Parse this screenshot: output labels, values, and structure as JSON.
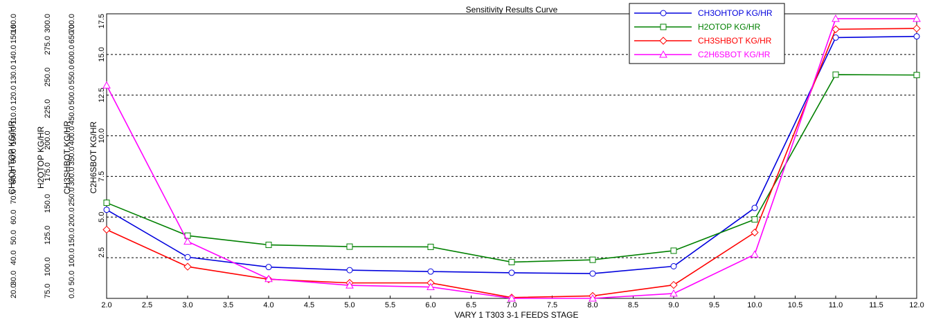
{
  "chart_data": {
    "type": "line",
    "title": "Sensitivity Results Curve",
    "xlabel": "VARY   1 T303 3-1 FEEDS STAGE",
    "xlim": [
      2.0,
      12.0
    ],
    "x_ticks": [
      "2.0",
      "2.5",
      "3.0",
      "3.5",
      "4.0",
      "4.5",
      "5.0",
      "5.5",
      "6.0",
      "6.5",
      "7.0",
      "7.5",
      "8.0",
      "8.5",
      "9.0",
      "9.5",
      "10.0",
      "10.5",
      "11.0",
      "11.5",
      "12.0"
    ],
    "x": [
      2,
      3,
      4,
      5,
      6,
      7,
      8,
      9,
      10,
      11,
      12
    ],
    "grid": true,
    "legend_position": "top-right",
    "y_axes": [
      {
        "label": "CH3OHTOP KG/HR",
        "ylim": [
          20.0,
          160.0
        ],
        "ticks": [
          "20.0",
          "30.0",
          "40.0",
          "50.0",
          "60.0",
          "70.0",
          "80.0",
          "90.0",
          "100.0",
          "110.0",
          "120.0",
          "130.0",
          "140.0",
          "150.0",
          "160.0"
        ]
      },
      {
        "label": "H2OTOP KG/HR",
        "ylim": [
          75.0,
          300.0
        ],
        "ticks": [
          "75.0",
          "100.0",
          "125.0",
          "150.0",
          "175.0",
          "200.0",
          "225.0",
          "250.0",
          "275.0",
          "300.0"
        ]
      },
      {
        "label": "CH3SHBOT KG/HR",
        "ylim": [
          0.0,
          700.0
        ],
        "ticks": [
          "0.0",
          "50.0",
          "100.0",
          "150.0",
          "200.0",
          "250.0",
          "300.0",
          "350.0",
          "400.0",
          "450.0",
          "500.0",
          "550.0",
          "600.0",
          "650.0",
          "700.0"
        ]
      },
      {
        "label": "C2H6SBOT KG/HR",
        "ylim": [
          0.0,
          17.5
        ],
        "ticks": [
          "2.5",
          "5.0",
          "7.5",
          "10.0",
          "12.5",
          "15.0",
          "17.5"
        ]
      }
    ],
    "series": [
      {
        "name": "CH3OHTOP KG/HR",
        "axis": 0,
        "color": "#0000dd",
        "marker": "circle",
        "values": [
          63.6,
          40.3,
          35.4,
          33.9,
          33.2,
          32.6,
          32.2,
          35.8,
          64.5,
          148.3,
          148.9
        ]
      },
      {
        "name": "H2OTOP KG/HR",
        "axis": 1,
        "color": "#008000",
        "marker": "square",
        "values": [
          150.6,
          124.6,
          117.3,
          115.9,
          115.7,
          103.7,
          105.5,
          112.7,
          137.4,
          251.9,
          251.6
        ]
      },
      {
        "name": "CH3SHBOT KG/HR",
        "axis": 2,
        "color": "#ff0000",
        "marker": "diamond",
        "values": [
          169,
          78,
          47,
          38,
          38,
          2,
          6,
          33,
          162,
          662,
          664
        ]
      },
      {
        "name": "C2H6SBOT KG/HR",
        "axis": 3,
        "color": "#ff00ff",
        "marker": "triangle",
        "values": [
          13.1,
          3.5,
          1.2,
          0.8,
          0.7,
          0.0,
          0.0,
          0.3,
          2.7,
          17.2,
          17.2
        ]
      }
    ]
  }
}
